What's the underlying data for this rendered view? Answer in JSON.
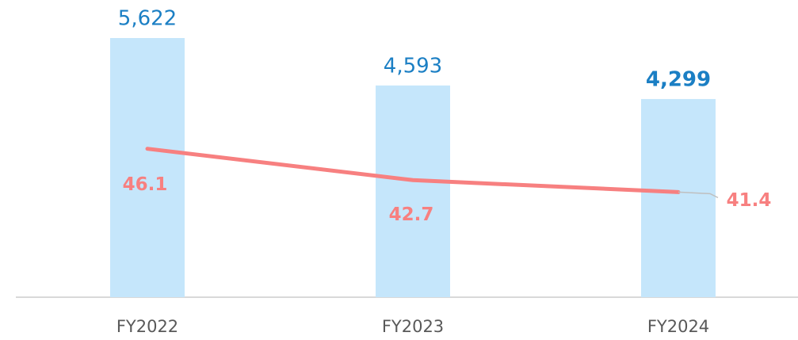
{
  "chart_data": {
    "type": "bar-line",
    "categories": [
      "FY2022",
      "FY2023",
      "FY2024"
    ],
    "series": [
      {
        "type": "bar",
        "color": "#c5e6fb",
        "values": [
          5622,
          4593,
          4299
        ],
        "value_labels": [
          "5,622",
          "4,593",
          "4,299"
        ]
      },
      {
        "type": "line",
        "axis": "y2",
        "color": "#f78080",
        "values": [
          46.1,
          42.7,
          41.4
        ]
      }
    ],
    "ylim": [
      0,
      6000
    ],
    "y2lim": [
      30,
      60
    ]
  }
}
